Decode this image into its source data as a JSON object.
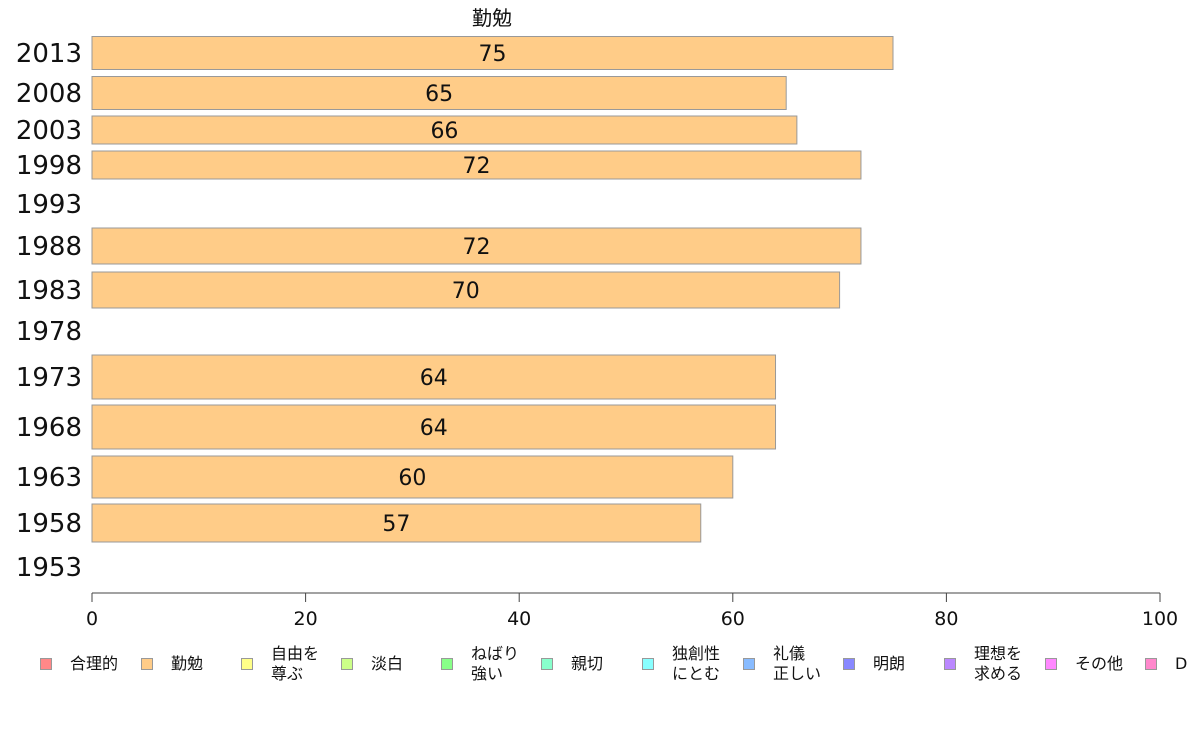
{
  "chart_data": {
    "type": "bar",
    "orientation": "horizontal",
    "title": "勤勉",
    "categories": [
      "2013",
      "2008",
      "2003",
      "1998",
      "1993",
      "1988",
      "1983",
      "1978",
      "1973",
      "1968",
      "1963",
      "1958",
      "1953"
    ],
    "series": [
      {
        "name": "勤勉",
        "values": [
          75,
          65,
          66,
          72,
          null,
          72,
          70,
          null,
          64,
          64,
          60,
          57,
          null
        ],
        "color": "#ffcc88"
      }
    ],
    "xlim": [
      0,
      100
    ],
    "xticks": [
      0,
      20,
      40,
      60,
      80,
      100
    ],
    "grid": false,
    "legend": {
      "placement": "bottom",
      "items": [
        {
          "label": "合理的",
          "color": "#ff8888"
        },
        {
          "label": "勤勉",
          "color": "#ffcc88"
        },
        {
          "label": "自由を\n尊ぶ",
          "color": "#ffff88"
        },
        {
          "label": "淡白",
          "color": "#ccff88"
        },
        {
          "label": "ねばり\n強い",
          "color": "#88ff88"
        },
        {
          "label": "親切",
          "color": "#88ffcc"
        },
        {
          "label": "独創性\nにとむ",
          "color": "#88ffff"
        },
        {
          "label": "礼儀\n正しい",
          "color": "#88bbff"
        },
        {
          "label": "明朗",
          "color": "#8888ff"
        },
        {
          "label": "理想を\n求める",
          "color": "#bb88ff"
        },
        {
          "label": "その他",
          "color": "#ff88ff"
        },
        {
          "label": "D",
          "color": "#ff88cc"
        }
      ]
    }
  }
}
